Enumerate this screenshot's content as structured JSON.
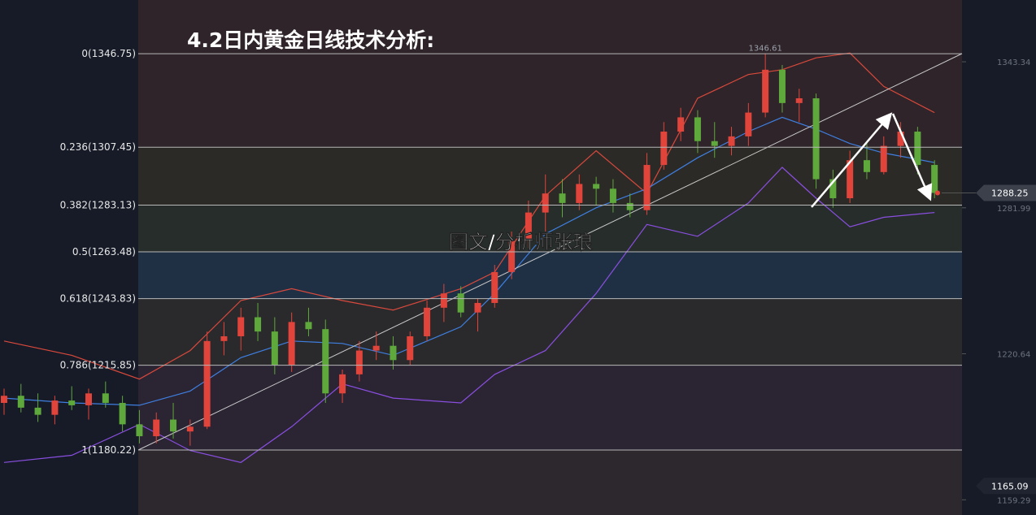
{
  "chart_data": {
    "type": "candlestick",
    "title": "4.2日内黄金日线技术分析:",
    "annotations": [
      "图文/分析师张琅"
    ],
    "x": [
      0,
      1,
      2,
      3,
      4,
      5,
      6,
      7,
      8,
      9,
      10,
      11,
      12,
      13,
      14,
      15,
      16,
      17,
      18,
      19,
      20,
      21,
      22,
      23,
      24,
      25,
      26,
      27,
      28,
      29,
      30,
      31,
      32,
      33,
      34,
      35,
      36,
      37,
      38,
      39,
      40,
      41,
      42,
      43,
      44,
      45,
      46,
      47,
      48,
      49,
      50,
      51,
      52,
      53,
      54,
      55
    ],
    "open": [
      1200,
      1203,
      1198,
      1195,
      1201,
      1199,
      1204,
      1200,
      1191,
      1186,
      1193,
      1188,
      1190,
      1226,
      1228,
      1236,
      1230,
      1216,
      1234,
      1231,
      1204,
      1212,
      1222,
      1224,
      1218,
      1228,
      1240,
      1246,
      1238,
      1242,
      1255,
      1268,
      1280,
      1288,
      1284,
      1292,
      1290,
      1284,
      1281,
      1300,
      1314,
      1320,
      1310,
      1308,
      1312,
      1322,
      1340,
      1326,
      1328,
      1294,
      1286,
      1302,
      1297,
      1308,
      1314,
      1300
    ],
    "high": [
      1206,
      1208,
      1204,
      1203,
      1207,
      1206,
      1209,
      1203,
      1197,
      1196,
      1200,
      1193,
      1230,
      1234,
      1240,
      1242,
      1236,
      1238,
      1240,
      1235,
      1214,
      1226,
      1230,
      1228,
      1230,
      1243,
      1250,
      1249,
      1244,
      1258,
      1272,
      1285,
      1296,
      1294,
      1296,
      1295,
      1294,
      1288,
      1305,
      1318,
      1324,
      1323,
      1318,
      1316,
      1326,
      1346.61,
      1342,
      1332,
      1330,
      1298,
      1306,
      1310,
      1312,
      1318,
      1316,
      1302
    ],
    "low": [
      1195,
      1196,
      1192,
      1191,
      1197,
      1193,
      1198,
      1188,
      1183,
      1183,
      1185,
      1182,
      1189,
      1220,
      1222,
      1226,
      1212,
      1213,
      1228,
      1200,
      1200,
      1209,
      1218,
      1214,
      1216,
      1226,
      1234,
      1236,
      1230,
      1240,
      1252,
      1265,
      1272,
      1278,
      1281,
      1283,
      1280,
      1278,
      1279,
      1298,
      1310,
      1305,
      1303,
      1304,
      1308,
      1320,
      1322,
      1318,
      1290,
      1282,
      1284,
      1294,
      1296,
      1303,
      1296,
      1286
    ],
    "close": [
      1203,
      1198,
      1195,
      1201,
      1199,
      1204,
      1200,
      1191,
      1186,
      1193,
      1188,
      1190,
      1226,
      1228,
      1236,
      1230,
      1216,
      1234,
      1231,
      1204,
      1212,
      1222,
      1224,
      1218,
      1228,
      1240,
      1246,
      1238,
      1242,
      1255,
      1268,
      1280,
      1288,
      1284,
      1292,
      1290,
      1284,
      1281,
      1300,
      1314,
      1320,
      1310,
      1308,
      1312,
      1322,
      1340,
      1326,
      1328,
      1294,
      1286,
      1302,
      1297,
      1308,
      1314,
      1300,
      1288.25
    ],
    "up_color": "#e0443a",
    "down_color": "#5fa83c",
    "xlim": [
      -0.24,
      61
    ],
    "ylim": [
      1152.9,
      1369.3
    ],
    "fib_levels": [
      {
        "value": 1346.75,
        "label": "0(1346.75)"
      },
      {
        "value": 1307.45,
        "label": "0.236(1307.45)"
      },
      {
        "value": 1283.13,
        "label": "0.382(1283.13)"
      },
      {
        "value": 1263.48,
        "label": "0.5(1263.48)"
      },
      {
        "value": 1243.83,
        "label": "0.618(1243.83)"
      },
      {
        "value": 1215.85,
        "label": "0.786(1215.85)"
      },
      {
        "value": 1180.22,
        "label": "1(1180.22)"
      }
    ],
    "y2ticks": [
      1343.34,
      1281.99,
      1220.64,
      1159.29
    ],
    "last_price": 1288.25,
    "low_marker": 1165.09,
    "peak_label": 1346.61,
    "bands": {
      "x": [
        0,
        4,
        8,
        11,
        14,
        17,
        20,
        23,
        27,
        29,
        32,
        35,
        38,
        41,
        44,
        46,
        48,
        50,
        52,
        55
      ],
      "series": [
        {
          "color": "#d9493c",
          "values": [
            1226,
            1220,
            1210,
            1222,
            1243,
            1248,
            1243,
            1239,
            1248,
            1255,
            1287,
            1306,
            1288,
            1328,
            1338,
            1340,
            1345,
            1347,
            1333,
            1322
          ]
        },
        {
          "color": "#3f7fe0",
          "values": [
            1202,
            1200,
            1199,
            1205,
            1219,
            1226,
            1225,
            1220,
            1232,
            1246,
            1271,
            1282,
            1290,
            1303,
            1314,
            1320,
            1315,
            1309,
            1305,
            1301
          ]
        },
        {
          "color": "#8a4fe0",
          "values": [
            1175,
            1178,
            1191,
            1180,
            1175,
            1190,
            1208,
            1202,
            1200,
            1212,
            1222,
            1246,
            1275,
            1270,
            1284,
            1299,
            1286,
            1274,
            1278,
            1280
          ]
        }
      ]
    }
  }
}
